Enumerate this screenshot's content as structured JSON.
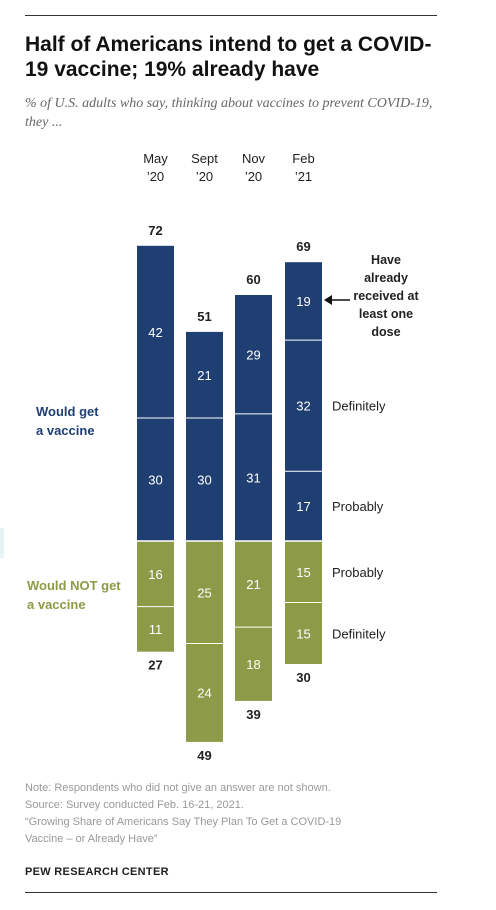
{
  "title": "Half of Americans intend to get a COVID-19 vaccine; 19% already have",
  "subtitle": "% of U.S. adults who say, thinking about vaccines to prevent COVID-19, they ...",
  "colors": {
    "get_dark": "#1f3f73",
    "not_get": "#8d9a48",
    "get_label": "#1f3f73",
    "not_get_label": "#8d9a48"
  },
  "chart_data": {
    "type": "bar",
    "stacking": "diverging",
    "categories": [
      "May '20",
      "Sept '20",
      "Nov '20",
      "Feb '21"
    ],
    "category_labels": [
      [
        "May",
        "’20"
      ],
      [
        "Sept",
        "’20"
      ],
      [
        "Nov",
        "’20"
      ],
      [
        "Feb",
        "’21"
      ]
    ],
    "group_labels": {
      "would_get": [
        "Would get",
        "a vaccine"
      ],
      "would_not_get": [
        "Would NOT get",
        "a vaccine"
      ]
    },
    "series": [
      {
        "name": "Have already received at least one dose",
        "group": "would_get",
        "values": [
          null,
          null,
          null,
          19
        ]
      },
      {
        "name": "Definitely",
        "group": "would_get",
        "values": [
          42,
          21,
          29,
          32
        ]
      },
      {
        "name": "Probably",
        "group": "would_get",
        "values": [
          30,
          30,
          31,
          17
        ]
      },
      {
        "name": "Probably",
        "group": "would_not_get",
        "values": [
          16,
          25,
          21,
          15
        ]
      },
      {
        "name": "Definitely",
        "group": "would_not_get",
        "values": [
          11,
          24,
          18,
          15
        ]
      }
    ],
    "get_totals": [
      72,
      51,
      60,
      69
    ],
    "not_totals": [
      27,
      49,
      39,
      30
    ],
    "right_labels": {
      "already": [
        "Have",
        "already",
        "received at",
        "least one",
        "dose"
      ],
      "get_definitely": "Definitely",
      "get_probably": "Probably",
      "not_probably": "Probably",
      "not_definitely": "Definitely"
    }
  },
  "notes": {
    "note": "Note: Respondents who did not give an answer are not shown.",
    "source": "Source: Survey conducted Feb. 16-21, 2021.",
    "report_line1": "“Growing Share of Americans Say They Plan To Get a COVID-19",
    "report_line2": "Vaccine – or Already Have”"
  },
  "credit": "PEW RESEARCH CENTER"
}
